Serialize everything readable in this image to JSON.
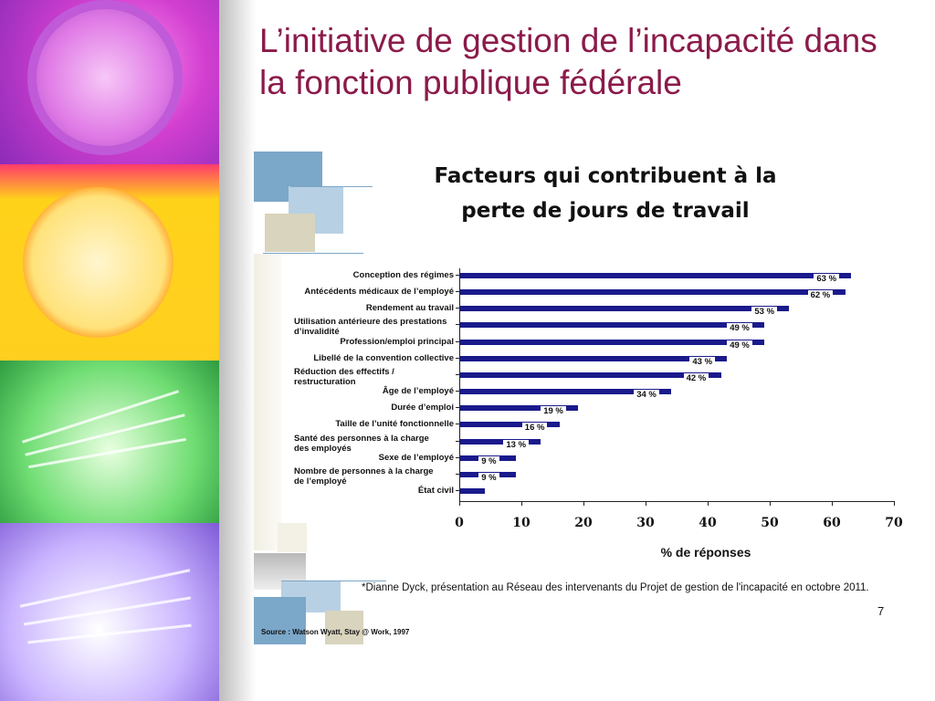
{
  "slide": {
    "title": "L’initiative de gestion de l’incapacité dans la fonction publique fédérale",
    "page_number": "7"
  },
  "footnote": "*Dianne Dyck, présentation au Réseau des intervenants du Projet de gestion de l'incapacité en octobre 2011.",
  "source": "Source : Watson Wyatt, Stay @ Work, 1997",
  "colors": {
    "title": "#8b1a4a",
    "bar": "#1a1a8c",
    "deco_blue": "#7ba7c9",
    "deco_beige": "#d9d4bd"
  },
  "chart_data": {
    "type": "bar",
    "orientation": "horizontal",
    "title_line1": "Facteurs qui contribuent à la",
    "title_line2": "perte de jours de travail",
    "xlabel": "% de réponses",
    "ylabel": "",
    "xlim": [
      0,
      70
    ],
    "xticks": [
      0,
      10,
      20,
      30,
      40,
      50,
      60,
      70
    ],
    "categories": [
      "Conception des régimes",
      "Antécédents médicaux de l’employé",
      "Rendement au travail",
      "Utilisation antérieure des prestations d’invalidité",
      "Profession/emploi principal",
      "Libellé de la convention collective",
      "Réduction des effectifs / restructuration",
      "Âge de l’employé",
      "Durée d’emploi",
      "Taille de l’unité fonctionnelle",
      "Santé des personnes à la charge des employés",
      "Sexe de l’employé",
      "Nombre de personnes à la charge de l’employé",
      "État civil"
    ],
    "category_lines": [
      [
        "Conception des régimes"
      ],
      [
        "Antécédents médicaux de l’employé"
      ],
      [
        "Rendement au travail"
      ],
      [
        "Utilisation antérieure des prestations",
        "d’invalidité"
      ],
      [
        "Profession/emploi principal"
      ],
      [
        "Libellé de la convention collective"
      ],
      [
        "Réduction des effectifs /",
        "restructuration"
      ],
      [
        "Âge de l’employé"
      ],
      [
        "Durée d’emploi"
      ],
      [
        "Taille de l’unité fonctionnelle"
      ],
      [
        "Santé des personnes à la charge",
        "des employés"
      ],
      [
        "Sexe de l’employé"
      ],
      [
        "Nombre de personnes à la charge",
        "de l’employé"
      ],
      [
        "État civil"
      ]
    ],
    "values": [
      63,
      62,
      53,
      49,
      49,
      43,
      42,
      34,
      19,
      16,
      13,
      9,
      9,
      4
    ],
    "value_labels": [
      "63 %",
      "62 %",
      "53 %",
      "49 %",
      "49 %",
      "43 %",
      "42 %",
      "34 %",
      "19 %",
      "16 %",
      "13 %",
      "9 %",
      "9 %",
      ""
    ],
    "grid": false
  }
}
